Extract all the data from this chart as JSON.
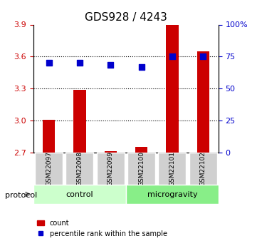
{
  "title": "GDS928 / 4243",
  "samples": [
    "GSM22097",
    "GSM22098",
    "GSM22099",
    "GSM22100",
    "GSM22101",
    "GSM22102"
  ],
  "count_values": [
    3.01,
    3.29,
    2.715,
    2.755,
    3.9,
    3.65
  ],
  "percentile_values": [
    70,
    70,
    68.5,
    67,
    75,
    75
  ],
  "ylim_left": [
    2.7,
    3.9
  ],
  "ylim_right": [
    0,
    100
  ],
  "yticks_left": [
    2.7,
    3.0,
    3.3,
    3.6,
    3.9
  ],
  "yticks_right": [
    0,
    25,
    50,
    75,
    100
  ],
  "ytick_labels_right": [
    "0",
    "25",
    "50",
    "75",
    "100%"
  ],
  "hlines": [
    3.0,
    3.3,
    3.6
  ],
  "bar_color": "#cc0000",
  "dot_color": "#0000cc",
  "bar_width": 0.4,
  "groups": [
    {
      "label": "control",
      "indices": [
        0,
        1,
        2
      ],
      "color": "#ccffcc"
    },
    {
      "label": "microgravity",
      "indices": [
        3,
        4,
        5
      ],
      "color": "#88ee88"
    }
  ],
  "protocol_label": "protocol",
  "legend_count_label": "count",
  "legend_percentile_label": "percentile rank within the sample",
  "background_color": "#ffffff",
  "plot_bg_color": "#ffffff",
  "grid_color": "#000000",
  "ylabel_left_color": "#cc0000",
  "ylabel_right_color": "#0000cc",
  "base_value": 2.7
}
